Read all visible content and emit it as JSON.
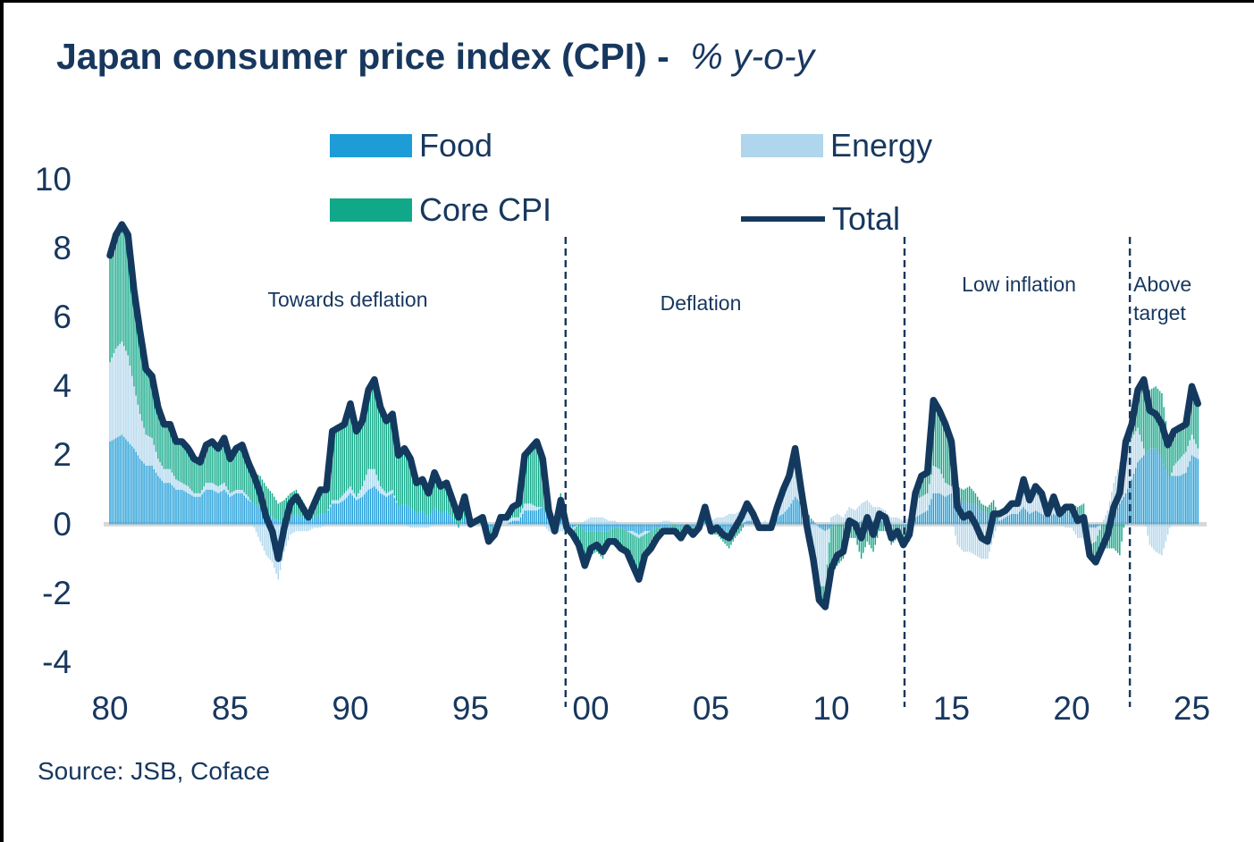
{
  "title": {
    "bold": "Japan consumer price index (CPI) -",
    "italic": "% y-o-y"
  },
  "source": "Source: JSB, Coface",
  "colors": {
    "food": "#1E9CD7",
    "energy": "#AFD6EC",
    "core": "#10A888",
    "total_line": "#14395F",
    "text": "#17375E",
    "zero_line": "#D8D8D8",
    "divider": "#17375E"
  },
  "legend": [
    {
      "id": "food",
      "label": "Food",
      "swatch": "bar"
    },
    {
      "id": "energy",
      "label": "Energy",
      "swatch": "bar"
    },
    {
      "id": "core",
      "label": "Core CPI",
      "swatch": "bar"
    },
    {
      "id": "total",
      "label": "Total",
      "swatch": "line"
    }
  ],
  "chart_data": {
    "type": "bar",
    "subtype": "stacked-contribution-bars-with-total-line",
    "x_unit": "year, quarterly points (monthly bars in source figure)",
    "x_start": 1980.0,
    "x_step": 0.25,
    "x_end": 2025.25,
    "ylim": [
      -4,
      10
    ],
    "yticks": [
      10,
      8,
      6,
      4,
      2,
      0,
      -2,
      -4
    ],
    "xticks": [
      {
        "label": "80",
        "year": 1980
      },
      {
        "label": "85",
        "year": 1985
      },
      {
        "label": "90",
        "year": 1990
      },
      {
        "label": "95",
        "year": 1995
      },
      {
        "label": "00",
        "year": 2000
      },
      {
        "label": "05",
        "year": 2005
      },
      {
        "label": "10",
        "year": 2010
      },
      {
        "label": "15",
        "year": 2015
      },
      {
        "label": "20",
        "year": 2020
      },
      {
        "label": "25",
        "year": 2025
      }
    ],
    "grid": false,
    "legend_position": "top-center",
    "dividers": [
      1998.95,
      2013.05,
      2022.42
    ],
    "regions": [
      {
        "label": "Towards deflation",
        "from": 1980,
        "to": 1998.95
      },
      {
        "label": "Deflation",
        "from": 1998.95,
        "to": 2013.05
      },
      {
        "label": "Low inflation",
        "from": 2013.05,
        "to": 2022.42
      },
      {
        "label": "Above target",
        "from": 2022.42,
        "to": 2025.5
      }
    ],
    "series": [
      {
        "name": "Food",
        "role": "bar-stack",
        "values": [
          2.4,
          2.5,
          2.6,
          2.4,
          2.2,
          1.9,
          1.7,
          1.7,
          1.4,
          1.2,
          1.2,
          1.0,
          1.0,
          0.9,
          0.8,
          0.8,
          1.0,
          1.0,
          0.9,
          1.0,
          0.8,
          0.9,
          0.9,
          0.7,
          0.6,
          0.5,
          0.3,
          0.2,
          0.1,
          0.1,
          0.2,
          0.3,
          0.2,
          0.1,
          0.2,
          0.3,
          0.3,
          0.6,
          0.6,
          0.7,
          0.9,
          0.7,
          0.8,
          1.0,
          1.1,
          0.9,
          0.8,
          0.9,
          0.5,
          0.6,
          0.5,
          0.3,
          0.4,
          0.2,
          0.5,
          0.3,
          0.4,
          0.2,
          -0.1,
          0.2,
          -0.1,
          0.0,
          0.0,
          -0.2,
          -0.1,
          0.0,
          0.0,
          0.1,
          0.1,
          0.4,
          0.4,
          0.4,
          0.5,
          0.2,
          0.0,
          0.2,
          0.0,
          -0.1,
          0.0,
          -0.2,
          -0.2,
          -0.2,
          -0.2,
          -0.2,
          -0.1,
          -0.1,
          -0.2,
          -0.2,
          -0.3,
          -0.2,
          -0.2,
          -0.1,
          -0.1,
          -0.1,
          0.0,
          -0.1,
          0.0,
          -0.1,
          0.0,
          0.2,
          -0.1,
          -0.1,
          -0.2,
          -0.2,
          -0.1,
          0.0,
          0.1,
          0.1,
          0.0,
          0.0,
          0.0,
          0.2,
          0.3,
          0.5,
          0.8,
          0.6,
          0.3,
          0.1,
          -0.1,
          -0.2,
          -0.1,
          0.0,
          0.0,
          0.2,
          0.0,
          0.1,
          0.2,
          0.1,
          0.1,
          0.1,
          -0.1,
          0.0,
          -0.1,
          0.0,
          0.2,
          0.3,
          0.4,
          0.9,
          0.9,
          0.8,
          0.9,
          0.7,
          0.7,
          0.6,
          0.6,
          0.4,
          0.3,
          0.2,
          0.1,
          0.2,
          0.3,
          0.3,
          0.5,
          0.3,
          0.4,
          0.3,
          0.2,
          0.3,
          0.2,
          0.3,
          0.4,
          0.3,
          0.3,
          -0.1,
          -0.1,
          0.0,
          0.0,
          0.3,
          0.6,
          0.9,
          1.3,
          1.8,
          2.0,
          2.2,
          2.2,
          1.9,
          1.4,
          1.4,
          1.4,
          1.5,
          2.0,
          1.9
        ]
      },
      {
        "name": "Energy",
        "role": "bar-stack",
        "values": [
          2.3,
          2.6,
          2.7,
          2.5,
          1.8,
          1.3,
          0.9,
          0.8,
          0.5,
          0.4,
          0.4,
          0.3,
          0.2,
          0.2,
          0.1,
          0.1,
          0.2,
          0.2,
          0.2,
          0.2,
          0.1,
          0.1,
          0.1,
          0.1,
          -0.1,
          -0.5,
          -0.9,
          -1.1,
          -1.6,
          -0.8,
          -0.3,
          -0.2,
          -0.2,
          -0.2,
          -0.1,
          -0.1,
          0.0,
          0.1,
          0.1,
          0.2,
          0.2,
          0.1,
          0.3,
          0.6,
          0.5,
          0.2,
          0.1,
          0.1,
          0.0,
          0.0,
          -0.1,
          -0.1,
          -0.1,
          -0.1,
          0.0,
          0.0,
          0.0,
          0.0,
          0.0,
          0.0,
          0.0,
          0.0,
          0.0,
          0.0,
          0.0,
          0.1,
          0.1,
          0.1,
          0.1,
          0.2,
          0.2,
          0.1,
          0.0,
          -0.2,
          -0.3,
          -0.2,
          -0.2,
          -0.1,
          0.0,
          0.1,
          0.2,
          0.2,
          0.2,
          0.1,
          0.1,
          0.0,
          0.0,
          -0.1,
          -0.1,
          -0.1,
          0.0,
          0.0,
          0.1,
          0.1,
          0.0,
          0.0,
          0.0,
          0.0,
          0.1,
          0.1,
          0.1,
          0.2,
          0.2,
          0.3,
          0.3,
          0.4,
          0.4,
          0.2,
          0.0,
          0.1,
          0.0,
          0.3,
          0.5,
          0.7,
          1.2,
          0.3,
          -0.5,
          -1.0,
          -1.7,
          -1.6,
          0.2,
          0.3,
          0.2,
          0.3,
          0.4,
          0.5,
          0.5,
          0.4,
          0.4,
          0.3,
          0.2,
          0.2,
          0.1,
          0.2,
          0.5,
          0.5,
          0.5,
          0.8,
          0.7,
          0.4,
          0.2,
          -0.6,
          -0.8,
          -0.8,
          -0.9,
          -1.0,
          -1.0,
          -0.4,
          0.2,
          0.2,
          0.3,
          0.3,
          0.4,
          0.4,
          0.5,
          0.4,
          0.1,
          0.3,
          0.0,
          -0.1,
          -0.1,
          -0.4,
          -0.4,
          -0.5,
          -0.4,
          0.0,
          0.4,
          0.9,
          1.2,
          1.2,
          1.2,
          1.0,
          0.2,
          -0.6,
          -0.8,
          -0.9,
          -0.3,
          0.3,
          0.5,
          0.6,
          0.6,
          0.3
        ]
      },
      {
        "name": "Core CPI",
        "role": "bar-stack",
        "values": [
          3.1,
          3.3,
          3.4,
          3.5,
          2.8,
          2.4,
          1.9,
          1.8,
          1.5,
          1.3,
          1.3,
          1.1,
          1.2,
          1.1,
          1.0,
          0.9,
          1.1,
          1.2,
          1.1,
          1.3,
          1.0,
          1.2,
          1.3,
          1.0,
          0.9,
          0.9,
          0.8,
          0.7,
          0.5,
          0.6,
          0.7,
          0.7,
          0.5,
          0.3,
          0.5,
          0.8,
          0.7,
          2.0,
          2.1,
          2.0,
          2.4,
          1.9,
          1.9,
          2.3,
          2.6,
          2.3,
          2.1,
          2.2,
          1.5,
          1.6,
          1.5,
          1.0,
          1.0,
          0.8,
          1.0,
          0.8,
          0.8,
          0.5,
          0.3,
          0.6,
          0.1,
          0.1,
          0.2,
          -0.3,
          -0.2,
          0.1,
          0.1,
          0.3,
          0.4,
          1.4,
          1.6,
          1.9,
          1.4,
          0.4,
          0.1,
          0.7,
          0.1,
          -0.1,
          -0.6,
          -1.1,
          -0.7,
          -0.6,
          -0.8,
          -0.4,
          -0.5,
          -0.6,
          -0.6,
          -0.9,
          -1.2,
          -0.6,
          -0.5,
          -0.3,
          -0.2,
          -0.2,
          -0.2,
          -0.3,
          -0.1,
          -0.2,
          -0.2,
          0.2,
          -0.2,
          -0.2,
          -0.3,
          -0.5,
          -0.3,
          -0.2,
          0.1,
          0.0,
          -0.1,
          -0.2,
          -0.1,
          0.0,
          0.2,
          0.2,
          0.2,
          0.1,
          0.1,
          -0.1,
          -0.4,
          -0.6,
          -1.4,
          -1.2,
          -1.0,
          -0.4,
          -0.4,
          -1.0,
          -0.5,
          -0.8,
          -0.2,
          -0.2,
          -0.5,
          -0.4,
          -0.6,
          -0.5,
          0.2,
          0.6,
          0.6,
          1.9,
          1.7,
          1.7,
          1.3,
          0.4,
          0.3,
          0.5,
          0.3,
          0.2,
          0.2,
          0.5,
          0.0,
          0.0,
          0.0,
          0.0,
          0.4,
          0.0,
          0.2,
          0.2,
          0.0,
          0.2,
          0.1,
          0.3,
          0.2,
          0.2,
          0.3,
          -0.3,
          -0.6,
          -0.7,
          -0.7,
          -0.7,
          -0.9,
          0.3,
          0.4,
          1.1,
          2.0,
          1.7,
          1.8,
          1.9,
          1.2,
          1.0,
          0.9,
          0.8,
          1.4,
          1.3
        ]
      },
      {
        "name": "Total",
        "role": "line",
        "values": [
          7.8,
          8.4,
          8.7,
          8.4,
          6.8,
          5.6,
          4.5,
          4.3,
          3.4,
          2.9,
          2.9,
          2.4,
          2.4,
          2.2,
          1.9,
          1.8,
          2.3,
          2.4,
          2.2,
          2.5,
          1.9,
          2.2,
          2.3,
          1.8,
          1.4,
          0.9,
          0.2,
          -0.2,
          -1.0,
          -0.1,
          0.6,
          0.8,
          0.5,
          0.2,
          0.6,
          1.0,
          1.0,
          2.7,
          2.8,
          2.9,
          3.5,
          2.7,
          3.0,
          3.9,
          4.2,
          3.4,
          3.0,
          3.2,
          2.0,
          2.2,
          1.9,
          1.2,
          1.3,
          0.9,
          1.5,
          1.1,
          1.2,
          0.7,
          0.2,
          0.8,
          0.0,
          0.1,
          0.2,
          -0.5,
          -0.3,
          0.2,
          0.2,
          0.5,
          0.6,
          2.0,
          2.2,
          2.4,
          1.9,
          0.4,
          -0.2,
          0.7,
          -0.1,
          -0.3,
          -0.6,
          -1.2,
          -0.7,
          -0.6,
          -0.8,
          -0.5,
          -0.5,
          -0.7,
          -0.8,
          -1.2,
          -1.6,
          -0.9,
          -0.7,
          -0.4,
          -0.2,
          -0.2,
          -0.2,
          -0.4,
          -0.1,
          -0.3,
          -0.1,
          0.5,
          -0.2,
          -0.1,
          -0.3,
          -0.4,
          -0.1,
          0.2,
          0.6,
          0.3,
          -0.1,
          -0.1,
          -0.1,
          0.5,
          1.0,
          1.4,
          2.2,
          1.0,
          -0.1,
          -1.0,
          -2.2,
          -2.4,
          -1.3,
          -0.9,
          -0.8,
          0.1,
          0.0,
          -0.4,
          0.2,
          -0.3,
          0.3,
          0.2,
          -0.4,
          -0.2,
          -0.6,
          -0.3,
          0.9,
          1.4,
          1.5,
          3.6,
          3.3,
          2.9,
          2.4,
          0.5,
          0.2,
          0.3,
          0.0,
          -0.4,
          -0.5,
          0.3,
          0.3,
          0.4,
          0.6,
          0.6,
          1.3,
          0.7,
          1.1,
          0.9,
          0.3,
          0.8,
          0.3,
          0.5,
          0.5,
          0.1,
          0.2,
          -0.9,
          -1.1,
          -0.7,
          -0.3,
          0.5,
          0.9,
          2.4,
          2.9,
          3.9,
          4.2,
          3.3,
          3.2,
          2.9,
          2.3,
          2.7,
          2.8,
          2.9,
          4.0,
          3.5
        ]
      }
    ]
  }
}
